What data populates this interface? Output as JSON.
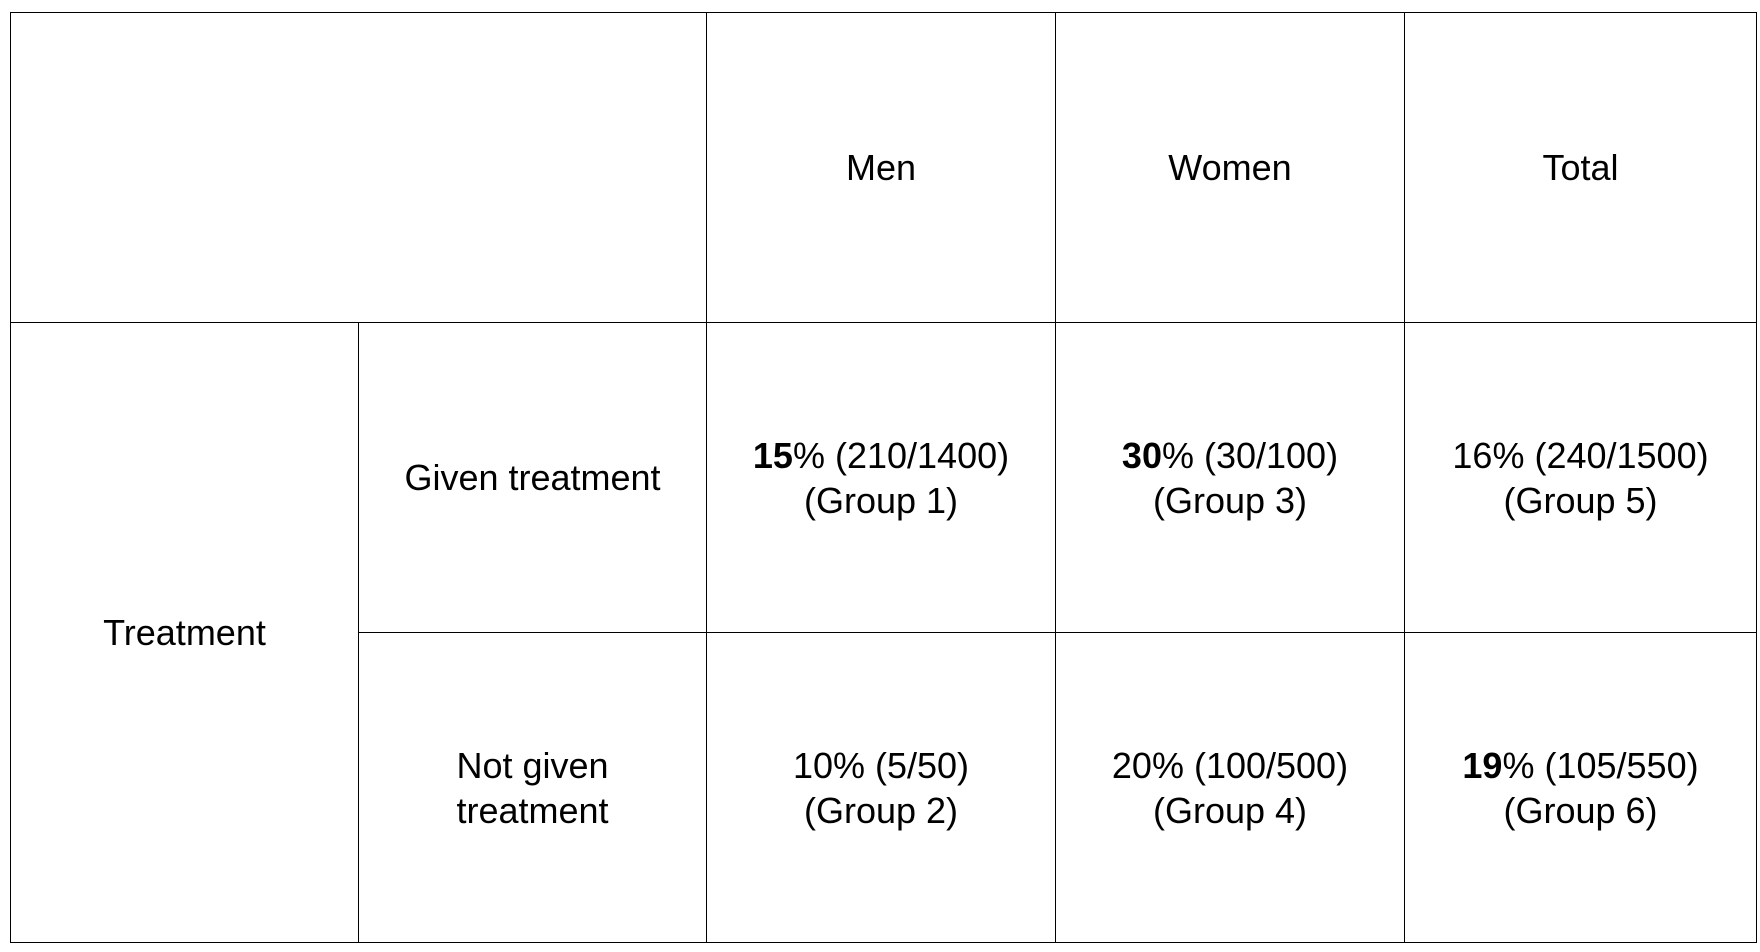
{
  "header": {
    "columns": [
      "Men",
      "Women",
      "Total"
    ]
  },
  "row_group": {
    "label": "Treatment"
  },
  "rows": [
    {
      "label_lines": [
        "Given treatment"
      ],
      "cells": [
        {
          "bold": "15",
          "rest": "% (210/1400)",
          "group": "(Group 1)"
        },
        {
          "bold": "30",
          "rest": "% (30/100)",
          "group": "(Group 3)"
        },
        {
          "bold": "",
          "rest": "16% (240/1500)",
          "group": "(Group 5)"
        }
      ]
    },
    {
      "label_lines": [
        "Not given",
        "treatment"
      ],
      "cells": [
        {
          "bold": "",
          "rest": "10% (5/50)",
          "group": "(Group 2)"
        },
        {
          "bold": "",
          "rest": "20% (100/500)",
          "group": "(Group 4)"
        },
        {
          "bold": "19",
          "rest": "% (105/550)",
          "group": "(Group 6)"
        }
      ]
    }
  ]
}
